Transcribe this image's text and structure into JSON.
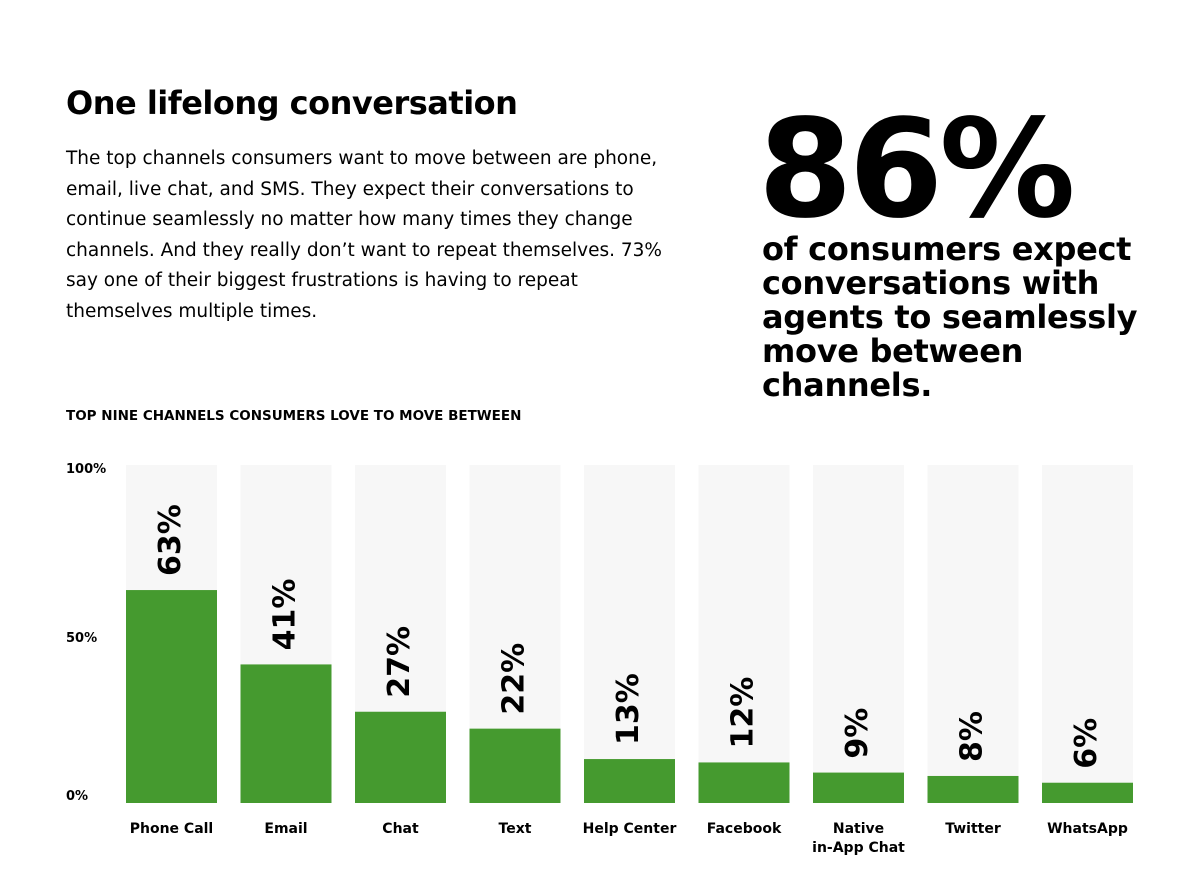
{
  "header": {
    "title": "One lifelong conversation",
    "body": "The top channels consumers want to move between are phone, email, live chat, and SMS. They expect their conversations to continue seamlessly no matter how many times they change channels. And they really don’t want to repeat themselves. 73% say one of their biggest frustrations is having to repeat themselves multiple times."
  },
  "stat": {
    "value": "86%",
    "caption": "of consumers expect conversations with agents to seamlessly move between channels."
  },
  "chart_data": {
    "type": "bar",
    "title": "TOP NINE CHANNELS CONSUMERS LOVE TO MOVE BETWEEN",
    "categories": [
      "Phone Call",
      "Email",
      "Chat",
      "Text",
      "Help Center",
      "Facebook",
      "Native\nin-App Chat",
      "Twitter",
      "WhatsApp"
    ],
    "values": [
      63,
      41,
      27,
      22,
      13,
      12,
      9,
      8,
      6
    ],
    "value_labels": [
      "63%",
      "41%",
      "27%",
      "22%",
      "13%",
      "12%",
      "9%",
      "8%",
      "6%"
    ],
    "color": "#459a2f",
    "ylim": [
      0,
      100
    ],
    "yticks": [
      {
        "value": 0,
        "label": "0%"
      },
      {
        "value": 50,
        "label": "50%"
      },
      {
        "value": 100,
        "label": "100%"
      }
    ],
    "grid": false
  }
}
